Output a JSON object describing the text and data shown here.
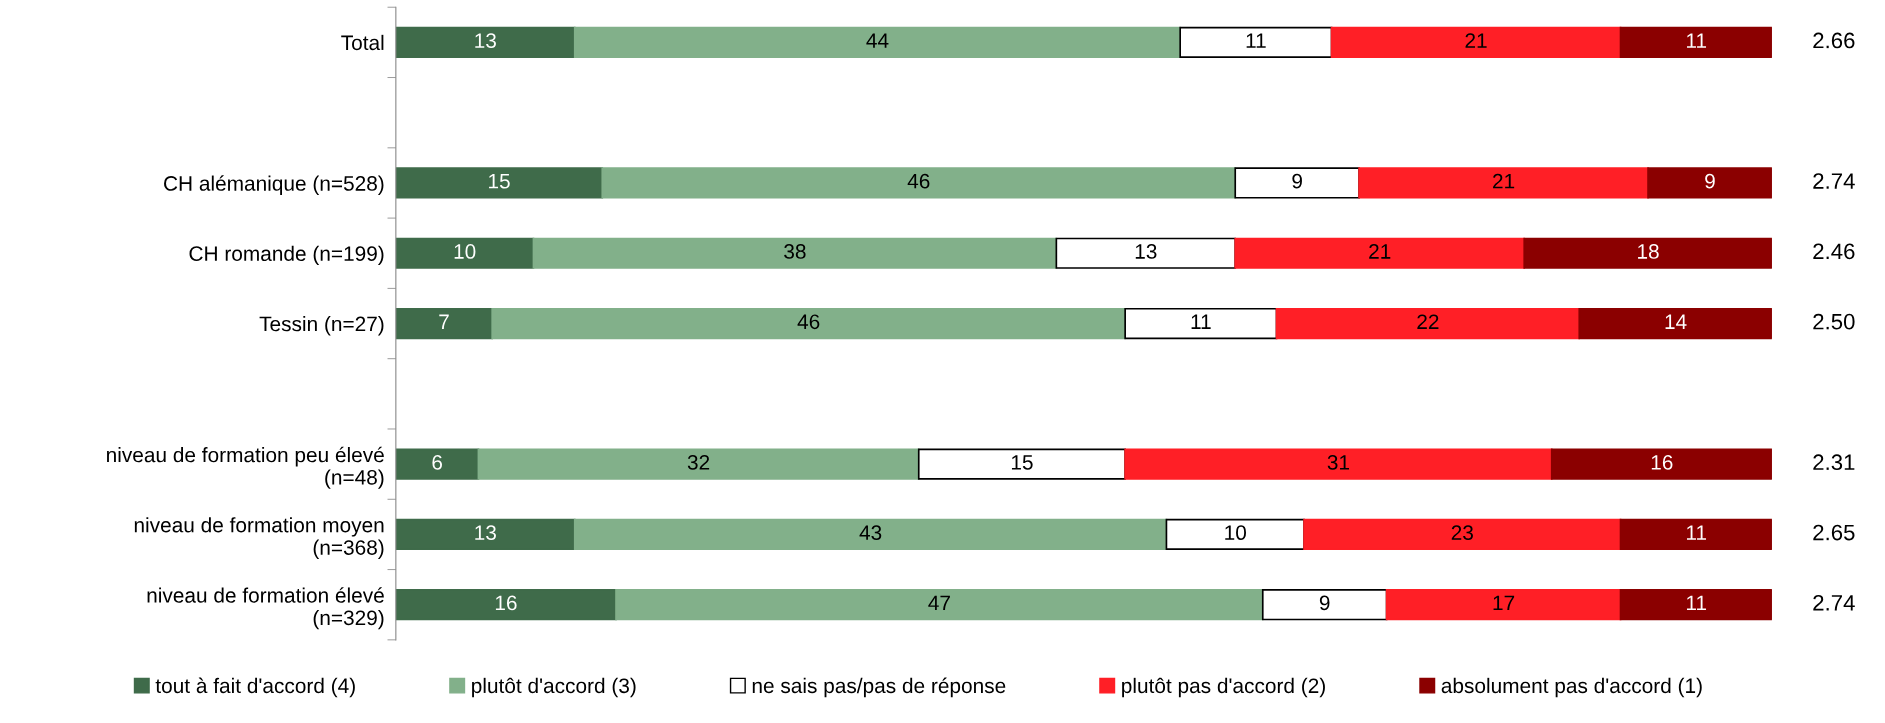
{
  "chart_data": {
    "type": "bar",
    "orientation": "horizontal",
    "stacked": true,
    "data_labels": true,
    "legend": "bottom",
    "grid": false,
    "categories": [
      "Total",
      null,
      "CH alémanique (n=528)",
      "CH romande (n=199)",
      "Tessin (n=27)",
      null,
      "niveau de formation peu élevé\n(n=48)",
      "niveau de formation moyen\n(n=368)",
      "niveau de formation élevé\n(n=329)"
    ],
    "series": [
      {
        "name": "tout à fait d'accord (4)",
        "color": "#3f6b4a",
        "values": [
          13,
          null,
          15,
          10,
          7,
          null,
          6,
          13,
          16
        ]
      },
      {
        "name": "plutôt d'accord (3)",
        "color": "#82b08a",
        "values": [
          44,
          null,
          46,
          38,
          46,
          null,
          32,
          43,
          47
        ]
      },
      {
        "name": "ne sais pas/pas de réponse",
        "color": "#ffffff",
        "values": [
          11,
          null,
          9,
          13,
          11,
          null,
          15,
          10,
          9
        ]
      },
      {
        "name": "plutôt pas d'accord (2)",
        "color": "#ff1f26",
        "values": [
          21,
          null,
          21,
          21,
          22,
          null,
          31,
          23,
          17
        ]
      },
      {
        "name": "absolument pas d'accord (1)",
        "color": "#8b0000",
        "values": [
          11,
          null,
          9,
          18,
          14,
          null,
          16,
          11,
          11
        ]
      }
    ],
    "annotations": [
      "2.66",
      "2.74",
      "2.46",
      "2.50",
      "2.31",
      "2.65",
      "2.74"
    ]
  }
}
